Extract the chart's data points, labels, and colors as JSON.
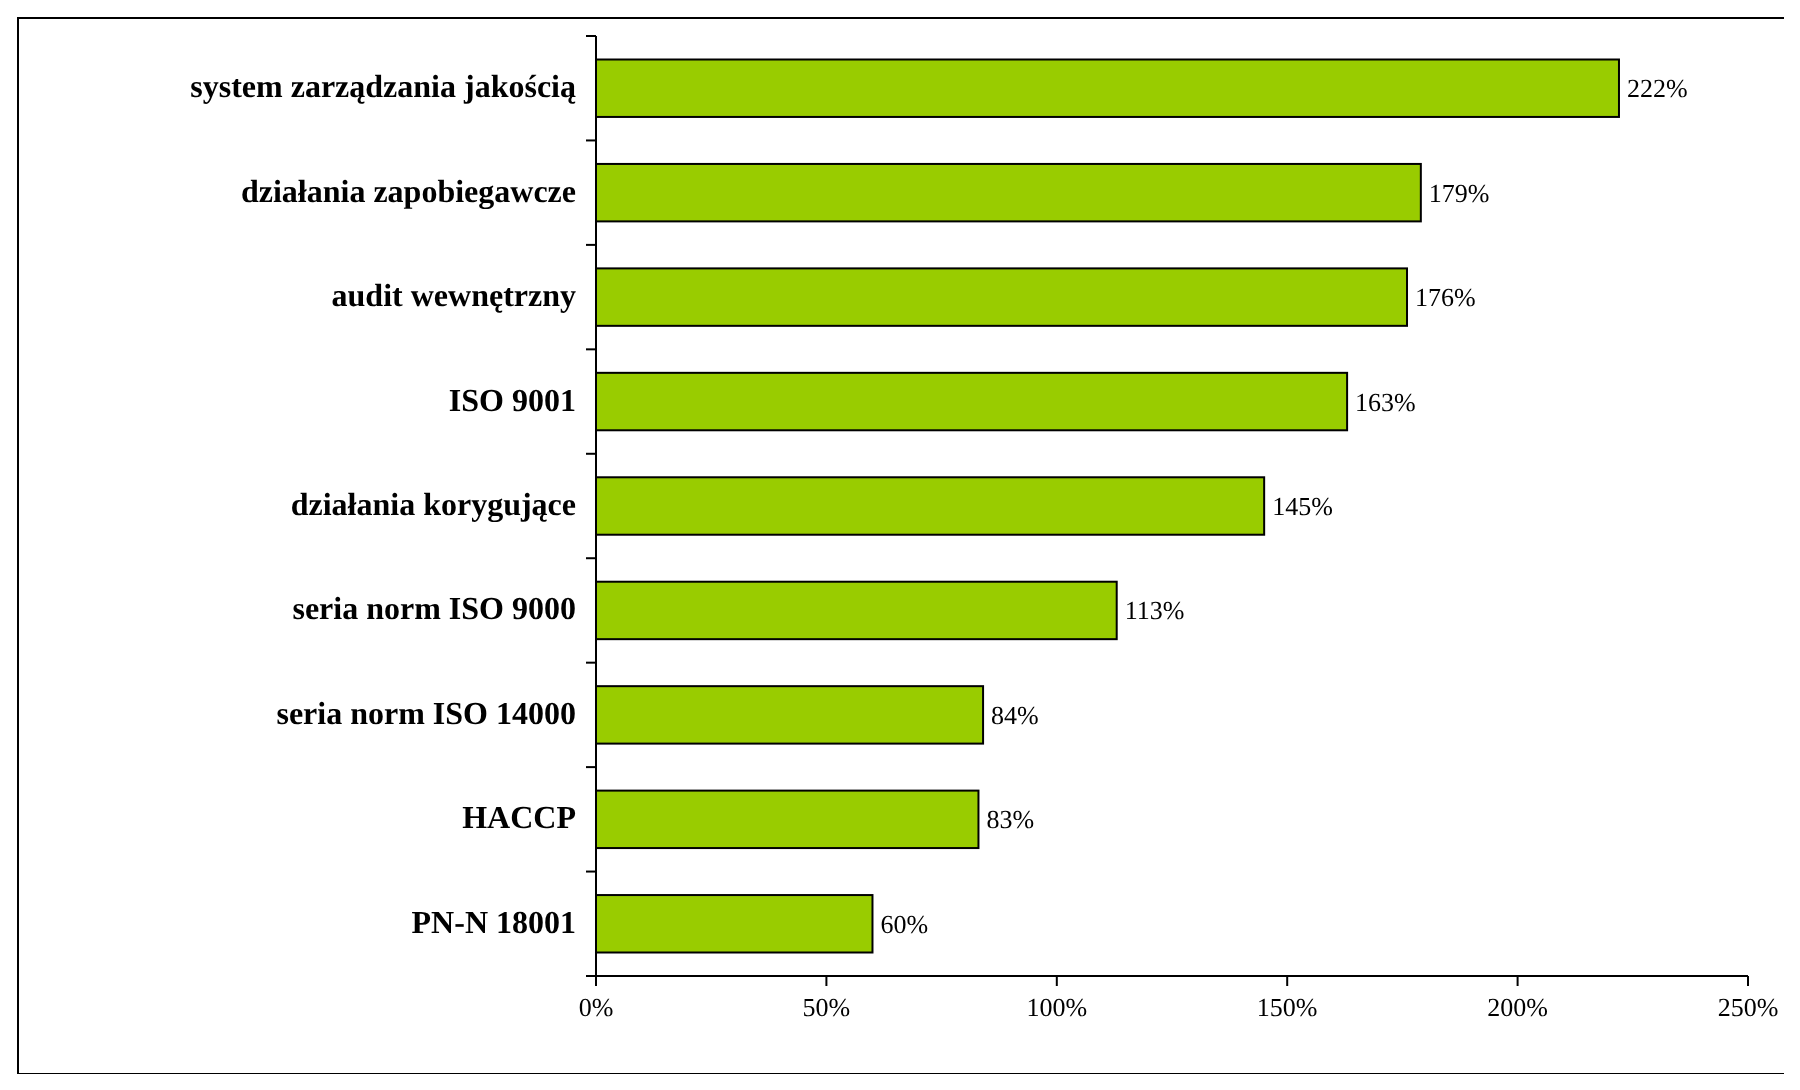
{
  "chart_data": {
    "type": "bar",
    "orientation": "horizontal",
    "categories": [
      "system zarządzania jakością",
      "działania zapobiegawcze",
      "audit wewnętrzny",
      "ISO 9001",
      "działania korygujące",
      "seria norm ISO 9000",
      "seria norm ISO 14000",
      "HACCP",
      "PN-N 18001"
    ],
    "values": [
      222,
      179,
      176,
      163,
      145,
      113,
      84,
      83,
      60
    ],
    "value_labels": [
      "222%",
      "179%",
      "176%",
      "163%",
      "145%",
      "113%",
      "84%",
      "83%",
      "60%"
    ],
    "color": "#99cc00",
    "xlim": [
      0,
      250
    ],
    "xticks": [
      {
        "value": 0,
        "label": "0%"
      },
      {
        "value": 50,
        "label": "50%"
      },
      {
        "value": 100,
        "label": "100%"
      },
      {
        "value": 150,
        "label": "150%"
      },
      {
        "value": 200,
        "label": "200%"
      },
      {
        "value": 250,
        "label": "250%"
      }
    ],
    "grid": false
  }
}
